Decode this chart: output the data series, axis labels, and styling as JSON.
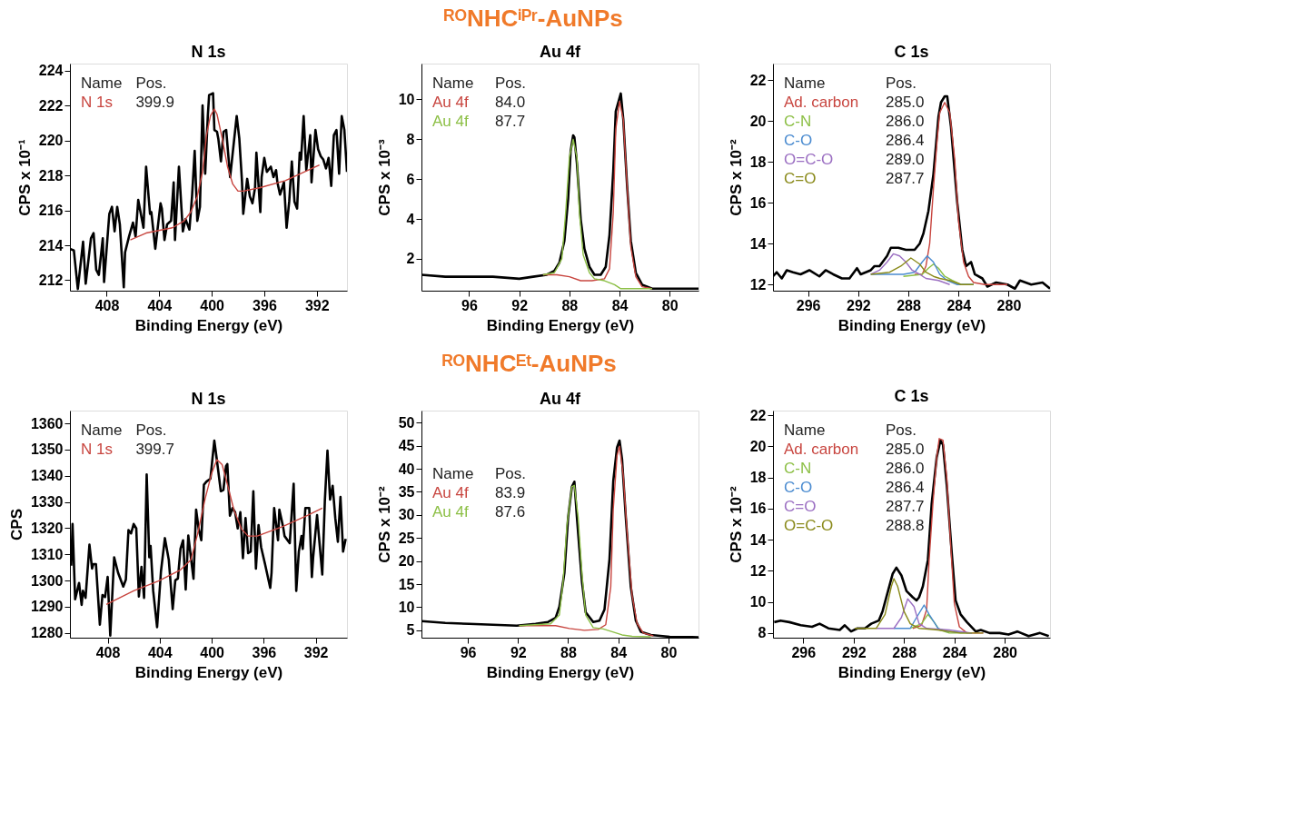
{
  "chart_data": [
    {
      "type": "line",
      "title": "N 1s",
      "xlabel": "Binding Energy (eV)",
      "ylabel": "CPS x 10⁻¹",
      "xlim": [
        410.8,
        389.7
      ],
      "xticks": [
        408,
        404,
        400,
        396,
        392
      ],
      "ylim": [
        211.4,
        224.4
      ],
      "yticks": [
        212,
        214,
        216,
        218,
        220,
        222,
        224
      ],
      "legend": "top left",
      "annotations": [
        "Name",
        "Pos.",
        "399.9"
      ],
      "series": [
        {
          "color": "#000000",
          "x": [
            410.8,
            410.5,
            410.2,
            409.8,
            409.6,
            409.2,
            409.0,
            408.8,
            408.6,
            408.3,
            408.2,
            407.8,
            407.6,
            407.4,
            407.2,
            407.0,
            406.7,
            406.6,
            406.3,
            406.0,
            405.8,
            405.6,
            405.2,
            405.0,
            404.7,
            404.6,
            404.3,
            403.9,
            403.8,
            403.6,
            403.4,
            403.1,
            402.9,
            402.8,
            402.5,
            402.2,
            402.0,
            401.7,
            401.5,
            401.3,
            401.1,
            400.9,
            400.7,
            400.5,
            400.3,
            400.2,
            399.9,
            399.8,
            399.6,
            399.5,
            399.3,
            399.1,
            398.9,
            398.6,
            398.1,
            397.9,
            397.7,
            397.6,
            397.3,
            397.1,
            396.9,
            396.7,
            396.6,
            396.3,
            396.2,
            396.0,
            395.8,
            395.5,
            395.3,
            395.1,
            395.0,
            394.8,
            394.5,
            394.3,
            394.1,
            393.9,
            393.7,
            393.5,
            393.3,
            393.2,
            393.0,
            392.8,
            392.5,
            392.4,
            392.1,
            391.9,
            391.7,
            391.5,
            391.3,
            391.1,
            390.9,
            390.7,
            390.5,
            390.3,
            390.1,
            389.9,
            389.7
          ],
          "values": [
            213.8,
            213.7,
            211.5,
            214.2,
            211.8,
            214.4,
            214.7,
            212.6,
            212.3,
            214.4,
            211.9,
            215.8,
            216.2,
            214.8,
            216.2,
            215.2,
            211.6,
            213.6,
            214.5,
            215.3,
            214.5,
            216.6,
            215.0,
            218.5,
            215.8,
            215.9,
            213.8,
            216.4,
            216.1,
            214.3,
            215.2,
            215.4,
            217.6,
            214.3,
            218.5,
            214.8,
            215.5,
            214.9,
            216.8,
            219.4,
            215.4,
            216.2,
            222.0,
            218.1,
            221.4,
            222.6,
            222.7,
            220.6,
            220.5,
            220.1,
            218.8,
            220.5,
            220.6,
            217.9,
            221.4,
            220.1,
            217.7,
            215.8,
            217.8,
            216.8,
            216.4,
            217.3,
            219.3,
            215.9,
            217.9,
            219.0,
            218.2,
            218.5,
            217.9,
            218.3,
            217.6,
            216.9,
            217.6,
            215.0,
            216.5,
            218.8,
            216.5,
            216.1,
            219.3,
            218.9,
            221.4,
            218.3,
            220.3,
            217.6,
            220.6,
            219.5,
            219.1,
            218.9,
            218.4,
            219.0,
            217.4,
            220.3,
            220.6,
            218.1,
            221.4,
            220.6,
            218.2
          ]
        },
        {
          "name": "N 1s",
          "color": "#c8453f",
          "x": [
            406.2,
            405.0,
            403.0,
            402.1,
            401.6,
            401.1,
            400.7,
            400.4,
            400.1,
            399.8,
            399.6,
            399.2,
            398.8,
            398.4,
            398.0,
            397.6,
            396.3,
            394.4,
            391.8
          ],
          "values": [
            214.3,
            214.7,
            215.0,
            215.4,
            215.9,
            216.8,
            218.2,
            220.3,
            221.4,
            221.8,
            221.5,
            220.1,
            218.5,
            217.5,
            217.1,
            217.1,
            217.3,
            217.7,
            218.6
          ]
        }
      ]
    },
    {
      "type": "line",
      "title": "Au 4f",
      "subtitle": "ᴿᴼNHCⁱᴾʳ-AuNPs",
      "xlabel": "Binding Energy (eV)",
      "ylabel": "CPS x 10⁻³",
      "xlim": [
        99.8,
        77.7
      ],
      "xticks": [
        96,
        92,
        88,
        84,
        80
      ],
      "ylim": [
        0.4,
        11.8
      ],
      "yticks": [
        2,
        4,
        6,
        8,
        10
      ],
      "legend": "top left",
      "annotations": [
        "Name",
        "Pos.",
        "84.0",
        "87.7"
      ],
      "series": [
        {
          "color": "#000000",
          "x": [
            99.8,
            97.9,
            96.0,
            94.1,
            92.0,
            90.9,
            89.8,
            89.2,
            88.8,
            88.4,
            88.1,
            87.9,
            87.7,
            87.6,
            87.4,
            87.1,
            86.8,
            86.4,
            86.0,
            85.5,
            85.1,
            84.8,
            84.5,
            84.3,
            83.9,
            83.7,
            83.4,
            83.1,
            82.7,
            82.2,
            81.4,
            79.9,
            77.7
          ],
          "values": [
            1.2,
            1.1,
            1.1,
            1.1,
            1.0,
            1.1,
            1.2,
            1.4,
            1.8,
            2.9,
            5.0,
            7.4,
            8.2,
            8.1,
            6.8,
            4.0,
            2.5,
            1.6,
            1.2,
            1.2,
            1.6,
            3.2,
            6.4,
            9.4,
            10.3,
            9.0,
            5.7,
            2.9,
            1.3,
            0.7,
            0.5,
            0.5,
            0.5
          ]
        },
        {
          "name": "Au 4f",
          "color": "#c8453f",
          "x": [
            90.1,
            89.0,
            88.0,
            87.1,
            86.2,
            85.2,
            84.8,
            84.5,
            84.3,
            84.0,
            83.7,
            83.4,
            83.1,
            82.7,
            82.2,
            81.4
          ],
          "values": [
            1.2,
            1.2,
            1.1,
            0.9,
            0.9,
            1.0,
            1.5,
            4.3,
            8.5,
            9.9,
            9.0,
            5.7,
            2.6,
            1.1,
            0.6,
            0.5
          ]
        },
        {
          "name": "Au 4f",
          "color": "#8cbf45",
          "x": [
            90.1,
            89.2,
            88.6,
            88.3,
            88.0,
            87.7,
            87.4,
            87.2,
            86.9,
            86.4,
            86.0,
            85.2,
            84.4,
            83.9,
            83.3,
            81.4
          ],
          "values": [
            1.2,
            1.3,
            2.0,
            4.3,
            7.1,
            8.0,
            7.1,
            4.3,
            2.2,
            1.3,
            1.0,
            0.9,
            0.7,
            0.5,
            0.5,
            0.5
          ]
        }
      ]
    },
    {
      "type": "line",
      "title": "C 1s",
      "xlabel": "Binding Energy (eV)",
      "ylabel": "CPS x 10⁻²",
      "xlim": [
        298.8,
        276.7
      ],
      "xticks": [
        296,
        292,
        288,
        284,
        280
      ],
      "ylim": [
        11.7,
        22.8
      ],
      "yticks": [
        12,
        14,
        16,
        18,
        20,
        22
      ],
      "legend": "top left",
      "annotations": [
        "Name",
        "Pos.",
        "285.0",
        "286.0",
        "286.4",
        "289.0",
        "287.7"
      ],
      "series": [
        {
          "color": "#000000",
          "x": [
            298.8,
            298.5,
            298.1,
            297.7,
            297.2,
            296.6,
            295.9,
            295.1,
            294.6,
            294.0,
            293.3,
            292.7,
            292.1,
            291.8,
            291.0,
            290.7,
            290.3,
            289.7,
            289.4,
            288.8,
            288.2,
            287.5,
            287.1,
            286.8,
            286.4,
            286.0,
            285.6,
            285.4,
            285.1,
            284.9,
            284.6,
            284.1,
            283.7,
            283.4,
            283.0,
            282.7,
            282.1,
            281.7,
            281.0,
            280.1,
            279.5,
            279.1,
            278.2,
            277.3,
            276.7
          ],
          "values": [
            12.4,
            12.6,
            12.3,
            12.7,
            12.6,
            12.5,
            12.7,
            12.4,
            12.7,
            12.5,
            12.3,
            12.3,
            12.8,
            12.5,
            12.7,
            12.9,
            12.9,
            13.4,
            13.8,
            13.8,
            13.7,
            13.7,
            14.0,
            14.5,
            15.6,
            17.4,
            20.2,
            20.9,
            21.2,
            21.2,
            19.7,
            16.0,
            13.7,
            12.9,
            13.1,
            12.5,
            12.3,
            11.9,
            12.1,
            12.0,
            11.8,
            12.2,
            12.0,
            12.1,
            11.8
          ]
        },
        {
          "name": "Ad. carbon",
          "color": "#c8453f",
          "x": [
            287.5,
            286.9,
            286.6,
            286.3,
            286.0,
            285.7,
            285.5,
            285.1,
            284.7,
            284.3,
            284.0,
            283.6,
            283.2,
            282.8,
            281.9,
            280.1
          ],
          "values": [
            12.5,
            12.5,
            12.9,
            14.0,
            16.7,
            19.1,
            20.4,
            20.9,
            20.4,
            18.1,
            15.1,
            13.1,
            12.4,
            12.1,
            12.0,
            12.0
          ]
        },
        {
          "name": "C-N",
          "color": "#8cbf45",
          "x": [
            288.4,
            286.9,
            286.4,
            286.0,
            285.6,
            285.1,
            284.5,
            283.8,
            282.8
          ],
          "values": [
            12.4,
            12.5,
            12.8,
            13.0,
            12.8,
            12.4,
            12.2,
            12.0,
            12.0
          ]
        },
        {
          "name": "C-O",
          "color": "#4a8bd0",
          "x": [
            291.0,
            288.4,
            287.5,
            286.9,
            286.5,
            286.0,
            285.5,
            284.9,
            284.1,
            282.8
          ],
          "values": [
            12.5,
            12.5,
            12.6,
            13.1,
            13.4,
            13.1,
            12.5,
            12.2,
            12.0,
            12.0
          ]
        },
        {
          "name": "O=C-O",
          "color": "#9b6fc2",
          "x": [
            291.0,
            290.3,
            289.7,
            289.2,
            288.7,
            288.2,
            287.7,
            287.1,
            286.6,
            285.6,
            284.7
          ],
          "values": [
            12.5,
            12.7,
            13.1,
            13.5,
            13.4,
            13.1,
            12.7,
            12.5,
            12.3,
            12.2,
            12.0
          ]
        },
        {
          "name": "C=O",
          "color": "#8a8a1a",
          "x": [
            291.0,
            289.5,
            288.6,
            287.8,
            287.1,
            286.6,
            286.0,
            285.5,
            284.7,
            283.8,
            282.8
          ],
          "values": [
            12.5,
            12.6,
            12.9,
            13.3,
            13.0,
            12.6,
            12.4,
            12.3,
            12.2,
            12.0,
            12.0
          ]
        }
      ]
    },
    {
      "type": "line",
      "title": "N 1s",
      "xlabel": "Binding Energy (eV)",
      "ylabel": "CPS",
      "xlim": [
        410.9,
        389.6
      ],
      "xticks": [
        408,
        404,
        400,
        396,
        392
      ],
      "ylim": [
        1278.2,
        1364.9
      ],
      "yticks": [
        1280,
        1290,
        1300,
        1310,
        1320,
        1330,
        1340,
        1350,
        1360
      ],
      "legend": "top left",
      "annotations": [
        "Name",
        "Pos.",
        "399.7"
      ],
      "series": [
        {
          "color": "#000000",
          "x": [
            410.8,
            410.7,
            410.5,
            410.2,
            410.0,
            409.9,
            409.7,
            409.4,
            409.2,
            409.1,
            408.9,
            408.6,
            408.4,
            408.2,
            408.0,
            407.8,
            407.5,
            407.2,
            406.8,
            406.6,
            406.4,
            406.2,
            406.0,
            405.8,
            405.6,
            405.4,
            405.2,
            405.0,
            404.8,
            404.7,
            404.5,
            404.2,
            403.9,
            403.6,
            403.3,
            403.0,
            402.8,
            402.6,
            402.4,
            402.2,
            402.0,
            401.8,
            401.6,
            401.4,
            401.2,
            401.0,
            400.8,
            400.6,
            400.4,
            400.1,
            399.8,
            399.6,
            399.3,
            399.1,
            398.9,
            398.8,
            398.6,
            398.4,
            398.2,
            398.0,
            397.8,
            397.6,
            397.4,
            397.2,
            397.0,
            396.8,
            396.6,
            396.4,
            396.2,
            395.9,
            395.5,
            395.4,
            395.2,
            394.9,
            394.8,
            394.5,
            394.4,
            394.0,
            393.7,
            393.5,
            393.3,
            393.1,
            393.0,
            392.8,
            392.5,
            392.3,
            392.2,
            391.9,
            391.5,
            391.3,
            391.1,
            390.9,
            390.7,
            390.5,
            390.3,
            390.1,
            389.9,
            389.7
          ],
          "values": [
            1305.7,
            1321.6,
            1292.9,
            1299.1,
            1290.7,
            1296.1,
            1293.4,
            1313.7,
            1304.6,
            1306.3,
            1306.3,
            1283.2,
            1294.5,
            1293.7,
            1301.4,
            1279.0,
            1308.9,
            1303.0,
            1297.7,
            1300.4,
            1319.3,
            1318.0,
            1321.6,
            1319.9,
            1293.9,
            1305.2,
            1293.4,
            1340.5,
            1308.9,
            1313.2,
            1296.1,
            1282.2,
            1303.6,
            1316.2,
            1307.9,
            1289.1,
            1300.1,
            1300.8,
            1312.1,
            1315.4,
            1296.6,
            1317.2,
            1308.9,
            1300.7,
            1327.1,
            1319.6,
            1315.4,
            1336.6,
            1337.8,
            1338.9,
            1353.4,
            1345.9,
            1334.1,
            1334.6,
            1343.7,
            1344.5,
            1324.8,
            1327.7,
            1326.1,
            1319.9,
            1326.1,
            1308.6,
            1323.9,
            1310.5,
            1311.1,
            1334.1,
            1304.6,
            1321.2,
            1312.7,
            1306.3,
            1297.2,
            1303.0,
            1327.7,
            1315.4,
            1327.1,
            1320.2,
            1317.0,
            1314.3,
            1337.0,
            1296.1,
            1311.1,
            1317.0,
            1312.1,
            1327.7,
            1327.7,
            1301.4,
            1308.9,
            1325.0,
            1302.3,
            1330.6,
            1349.6,
            1330.9,
            1336.2,
            1323.9,
            1314.8,
            1331.9,
            1311.1,
            1315.9
          ]
        },
        {
          "name": "N 1s",
          "color": "#c8453f",
          "x": [
            408.1,
            406.0,
            404.1,
            402.4,
            401.6,
            401.1,
            400.5,
            400.0,
            399.6,
            399.2,
            398.8,
            398.3,
            397.7,
            397.2,
            396.5,
            394.5,
            392.6,
            391.5
          ],
          "values": [
            1290.9,
            1296.1,
            1299.8,
            1304.1,
            1307.9,
            1317.5,
            1331.4,
            1341.0,
            1346.2,
            1344.3,
            1336.8,
            1327.1,
            1319.6,
            1317.0,
            1317.0,
            1320.7,
            1325.0,
            1327.7
          ]
        }
      ]
    },
    {
      "type": "line",
      "title": "Au 4f",
      "subtitle": "ᴿᴼNHCᴱᵗ-AuNPs",
      "xlabel": "Binding Energy (eV)",
      "ylabel": "CPS x 10⁻²",
      "xlim": [
        99.7,
        77.6
      ],
      "xticks": [
        96,
        92,
        88,
        84,
        80
      ],
      "ylim": [
        3.4,
        52.6
      ],
      "yticks": [
        5,
        10,
        15,
        20,
        25,
        30,
        35,
        40,
        45,
        50
      ],
      "legend": "left",
      "annotations": [
        "Name",
        "Pos.",
        "83.9",
        "87.6"
      ],
      "series": [
        {
          "color": "#000000",
          "x": [
            99.7,
            97.8,
            95.9,
            94.0,
            92.1,
            90.6,
            89.6,
            89.0,
            88.7,
            88.3,
            88.0,
            87.7,
            87.5,
            87.3,
            86.9,
            86.6,
            86.0,
            85.5,
            85.1,
            84.7,
            84.4,
            84.1,
            83.9,
            83.7,
            83.4,
            83.0,
            82.6,
            82.2,
            81.4,
            79.9,
            77.6
          ],
          "values": [
            7.0,
            6.6,
            6.4,
            6.2,
            6.0,
            6.4,
            6.8,
            7.7,
            10.1,
            17.4,
            29.5,
            36.1,
            37.2,
            29.5,
            15.6,
            8.9,
            6.8,
            7.1,
            9.5,
            20.4,
            37.3,
            44.6,
            46.1,
            42.1,
            29.5,
            14.4,
            7.1,
            4.7,
            4.0,
            3.6,
            3.5
          ]
        },
        {
          "name": "Au 4f",
          "color": "#c8453f",
          "x": [
            91.9,
            89.0,
            87.9,
            86.7,
            85.6,
            85.0,
            84.6,
            84.4,
            84.1,
            83.9,
            83.6,
            83.3,
            82.9,
            82.5,
            82.0,
            81.2
          ],
          "values": [
            6.0,
            6.0,
            5.4,
            5.0,
            5.2,
            6.2,
            14.4,
            31.3,
            42.8,
            44.9,
            38.5,
            26.4,
            12.6,
            6.5,
            4.4,
            3.8
          ]
        },
        {
          "name": "Au 4f",
          "color": "#8cbf45",
          "x": [
            91.9,
            89.4,
            88.7,
            88.4,
            88.1,
            87.7,
            87.5,
            87.2,
            86.9,
            86.6,
            86.0,
            85.2,
            84.5,
            83.7,
            82.9,
            81.4
          ],
          "values": [
            6.0,
            6.4,
            8.3,
            15.6,
            27.7,
            36.1,
            36.4,
            29.5,
            17.4,
            8.3,
            5.6,
            5.3,
            4.7,
            4.0,
            3.7,
            3.6
          ]
        }
      ]
    },
    {
      "type": "line",
      "title": "C 1s",
      "xlabel": "Binding Energy (eV)",
      "ylabel": "CPS x 10⁻²",
      "xlim": [
        298.4,
        276.4
      ],
      "xticks": [
        296,
        292,
        288,
        284,
        280
      ],
      "ylim": [
        7.7,
        22.3
      ],
      "yticks": [
        8,
        10,
        12,
        14,
        16,
        18,
        20,
        22
      ],
      "legend": "top left",
      "annotations": [
        "Name",
        "Pos.",
        "285.0",
        "286.0",
        "286.4",
        "287.7",
        "288.8"
      ],
      "series": [
        {
          "color": "#000000",
          "x": [
            298.3,
            297.8,
            297.1,
            296.2,
            295.3,
            294.7,
            294.0,
            293.1,
            292.7,
            292.2,
            291.7,
            291.1,
            290.6,
            290.0,
            289.7,
            289.3,
            288.9,
            288.6,
            288.2,
            287.8,
            287.3,
            287.0,
            286.8,
            286.5,
            286.1,
            285.8,
            285.4,
            285.1,
            284.9,
            284.6,
            284.2,
            283.9,
            283.5,
            283.0,
            282.3,
            281.9,
            281.2,
            280.4,
            279.7,
            279.0,
            278.1,
            277.2,
            276.5
          ],
          "values": [
            8.7,
            8.8,
            8.7,
            8.5,
            8.4,
            8.6,
            8.3,
            8.2,
            8.5,
            8.1,
            8.3,
            8.3,
            8.6,
            8.8,
            9.4,
            10.6,
            11.8,
            12.2,
            11.7,
            10.7,
            10.3,
            10.1,
            10.3,
            11.0,
            12.7,
            16.3,
            19.3,
            20.4,
            20.1,
            17.5,
            13.1,
            10.1,
            9.2,
            8.7,
            8.1,
            8.2,
            8.0,
            8.0,
            7.9,
            8.1,
            7.8,
            8.0,
            7.8
          ]
        },
        {
          "name": "Ad. carbon",
          "color": "#c8453f",
          "x": [
            287.3,
            286.6,
            286.2,
            286.0,
            285.7,
            285.4,
            285.2,
            284.9,
            284.6,
            284.3,
            284.0,
            283.6,
            283.0,
            281.7
          ],
          "values": [
            8.3,
            8.5,
            9.5,
            12.7,
            16.3,
            19.3,
            20.5,
            20.4,
            18.0,
            13.8,
            9.9,
            8.4,
            8.0,
            8.0
          ]
        },
        {
          "name": "C-N",
          "color": "#8cbf45",
          "x": [
            287.5,
            286.6,
            286.1,
            285.6,
            285.2,
            284.4,
            282.6
          ],
          "values": [
            8.3,
            8.6,
            9.2,
            8.7,
            8.2,
            8.0,
            8.0
          ]
        },
        {
          "name": "C-O",
          "color": "#4a8bd0",
          "x": [
            288.8,
            287.5,
            287.0,
            286.4,
            286.0,
            285.3,
            284.6,
            282.6
          ],
          "values": [
            8.3,
            8.3,
            9.0,
            9.8,
            9.2,
            8.3,
            8.1,
            8.0
          ]
        },
        {
          "name": "C=O",
          "color": "#9b6fc2",
          "x": [
            290.2,
            288.8,
            288.2,
            287.7,
            287.2,
            286.8,
            286.2,
            284.4,
            282.6
          ],
          "values": [
            8.3,
            8.3,
            9.0,
            10.2,
            9.7,
            8.6,
            8.3,
            8.2,
            8.0
          ]
        },
        {
          "name": "O=C-O",
          "color": "#8a8a1a",
          "x": [
            291.9,
            290.2,
            289.5,
            289.0,
            288.8,
            288.5,
            288.0,
            287.5,
            286.8,
            285.3,
            283.5,
            281.7
          ],
          "values": [
            8.3,
            8.3,
            9.2,
            11.0,
            11.5,
            11.0,
            9.4,
            8.6,
            8.3,
            8.2,
            8.0,
            8.0
          ]
        }
      ]
    }
  ]
}
